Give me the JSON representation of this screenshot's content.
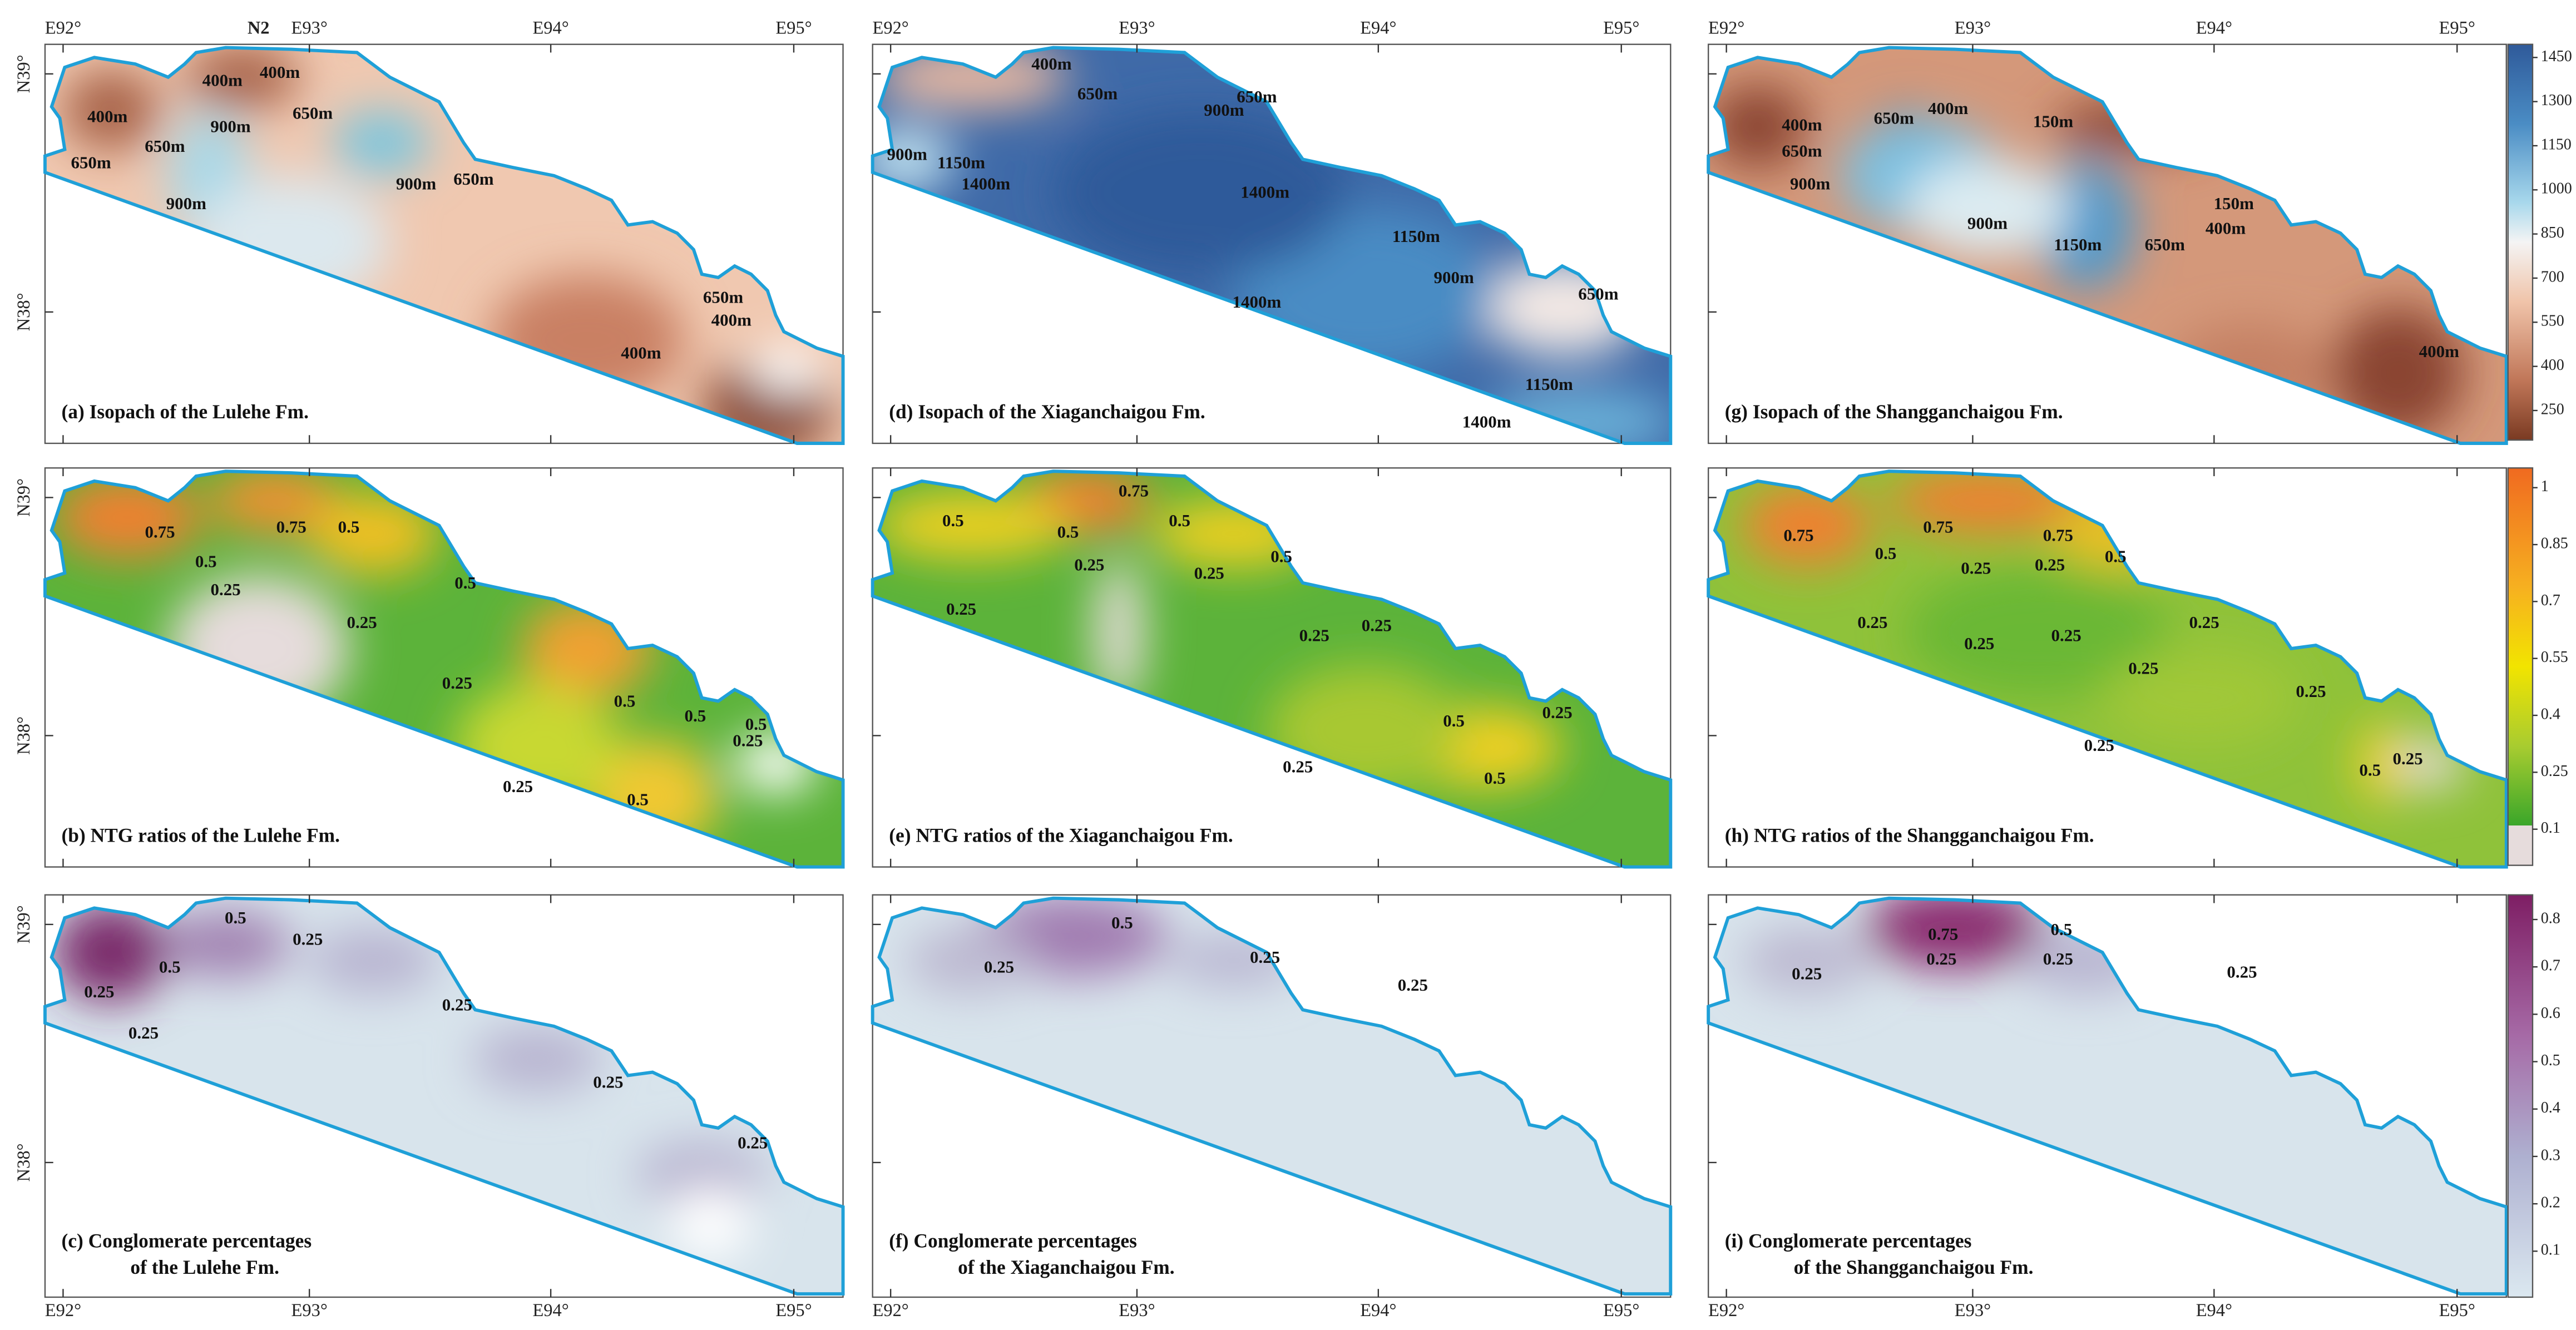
{
  "axes": {
    "longitude_labels": [
      "E92°",
      "E93°",
      "E94°",
      "E95°"
    ],
    "latitude_labels": [
      "N39°",
      "N38°"
    ],
    "marker": "N2"
  },
  "panels": [
    {
      "caption": [
        "(a) Isopach of the Lulehe Fm."
      ],
      "contour_labels": [
        "400m",
        "650m",
        "650m",
        "400m",
        "900m",
        "650m",
        "400m",
        "900m",
        "900m",
        "650m",
        "650m",
        "400m",
        "400m"
      ]
    },
    {
      "caption": [
        "(b)  NTG ratios of the Lulehe Fm."
      ],
      "contour_labels": [
        "0.75",
        "0.75",
        "0.5",
        "0.5",
        "0.25",
        "0.5",
        "0.25",
        "0.25",
        "0.25",
        "0.5",
        "0.5",
        "0.5",
        "0.5",
        "0.25"
      ]
    },
    {
      "caption": [
        "(c)  Conglomerate percentages",
        "of the Lulehe Fm."
      ],
      "contour_labels": [
        "0.5",
        "0.25",
        "0.5",
        "0.25",
        "0.25",
        "0.25",
        "0.25",
        "0.25"
      ]
    },
    {
      "caption": [
        "(d) Isopach of the Xiaganchaigou Fm."
      ],
      "contour_labels": [
        "400m",
        "650m",
        "900m",
        "1150m",
        "1400m",
        "900m",
        "650m",
        "1400m",
        "1150m",
        "1400m",
        "900m",
        "650m",
        "1150m",
        "1400m"
      ]
    },
    {
      "caption": [
        "(e)  NTG ratios of the Xiaganchaigou Fm."
      ],
      "contour_labels": [
        "0.5",
        "0.75",
        "0.5",
        "0.5",
        "0.25",
        "0.5",
        "0.25",
        "0.25",
        "0.25",
        "0.25",
        "0.5",
        "0.25",
        "0.25",
        "0.5"
      ]
    },
    {
      "caption": [
        "(f) Conglomerate percentages",
        "of the Xiaganchaigou Fm."
      ],
      "contour_labels": [
        "0.5",
        "0.25",
        "0.25",
        "0.25"
      ]
    },
    {
      "caption": [
        "(g) Isopach of the Shangganchaigou Fm."
      ],
      "contour_labels": [
        "400m",
        "650m",
        "900m",
        "650m",
        "400m",
        "150m",
        "900m",
        "1150m",
        "650m",
        "150m",
        "400m",
        "400m"
      ]
    },
    {
      "caption": [
        "(h) NTG ratios of the Shangganchaigou Fm."
      ],
      "contour_labels": [
        "0.75",
        "0.75",
        "0.5",
        "0.75",
        "0.5",
        "0.25",
        "0.25",
        "0.25",
        "0.25",
        "0.25",
        "0.25",
        "0.25",
        "0.25",
        "0.25",
        "0.5",
        "0.25"
      ]
    },
    {
      "caption": [
        "(i)  Conglomerate percentages",
        "of the Shangganchaigou Fm."
      ],
      "contour_labels": [
        "0.75",
        "0.5",
        "0.25",
        "0.25",
        "0.25",
        "0.25"
      ]
    }
  ],
  "colorbars": [
    {
      "ticks": [
        1450,
        1300,
        1150,
        1000,
        850,
        700,
        550,
        400,
        250
      ]
    },
    {
      "ticks": [
        1,
        0.85,
        0.7,
        0.55,
        0.4,
        0.25,
        0.1
      ]
    },
    {
      "ticks": [
        0.8,
        0.7,
        0.6,
        0.5,
        0.4,
        0.3,
        0.2,
        0.1
      ]
    }
  ]
}
